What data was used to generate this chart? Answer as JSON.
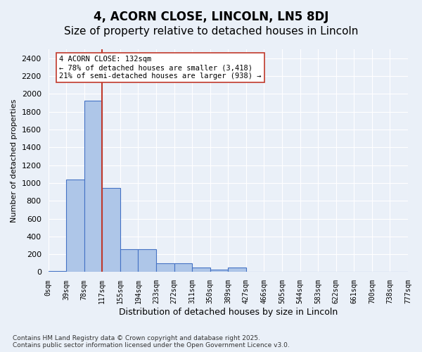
{
  "title": "4, ACORN CLOSE, LINCOLN, LN5 8DJ",
  "subtitle": "Size of property relative to detached houses in Lincoln",
  "xlabel": "Distribution of detached houses by size in Lincoln",
  "ylabel": "Number of detached properties",
  "annotation_line1": "4 ACORN CLOSE: 132sqm",
  "annotation_line2": "← 78% of detached houses are smaller (3,418)",
  "annotation_line3": "21% of semi-detached houses are larger (938) →",
  "footer_line1": "Contains HM Land Registry data © Crown copyright and database right 2025.",
  "footer_line2": "Contains public sector information licensed under the Open Government Licence v3.0.",
  "bin_labels": [
    "0sqm",
    "39sqm",
    "78sqm",
    "117sqm",
    "155sqm",
    "194sqm",
    "233sqm",
    "272sqm",
    "311sqm",
    "350sqm",
    "389sqm",
    "427sqm",
    "466sqm",
    "505sqm",
    "544sqm",
    "583sqm",
    "622sqm",
    "661sqm",
    "700sqm",
    "738sqm",
    "777sqm"
  ],
  "bar_values": [
    10,
    1040,
    1920,
    940,
    260,
    260,
    100,
    100,
    50,
    30,
    55,
    0,
    0,
    0,
    0,
    0,
    0,
    0,
    0,
    0
  ],
  "bar_color": "#aec6e8",
  "bar_edge_color": "#4472c4",
  "vline_color": "#c0392b",
  "vline_x": 3,
  "ylim": [
    0,
    2500
  ],
  "yticks": [
    0,
    200,
    400,
    600,
    800,
    1000,
    1200,
    1400,
    1600,
    1800,
    2000,
    2200,
    2400
  ],
  "background_color": "#eaf0f8",
  "plot_bg_color": "#eaf0f8",
  "grid_color": "#ffffff",
  "title_fontsize": 12,
  "subtitle_fontsize": 11
}
